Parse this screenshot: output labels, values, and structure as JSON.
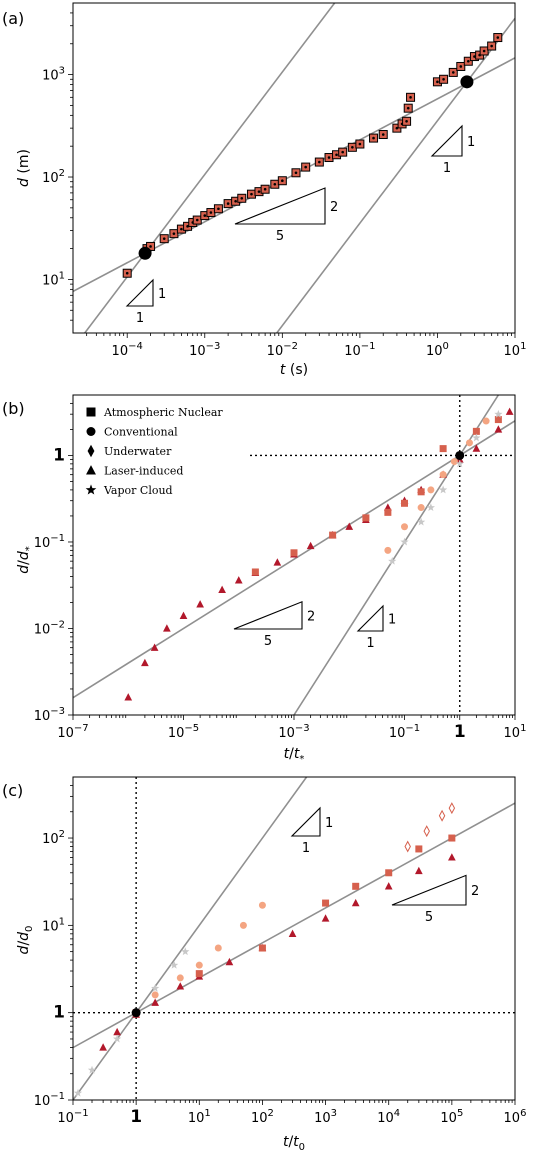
{
  "colors": {
    "dark_red": "#b2182b",
    "red": "#d6604d",
    "salmon": "#f4a582",
    "peach": "#fddbc7",
    "grey": "#c8c8c8",
    "fit_line": "#909090",
    "marker_point": "#000000"
  },
  "chart_data": [
    {
      "type": "scatter",
      "panel_label": "(a)",
      "xlabel": "t (s)",
      "ylabel": "d (m)",
      "xscale": "log",
      "yscale": "log",
      "xlim": [
        2e-05,
        10
      ],
      "ylim": [
        3,
        5000
      ],
      "x_tick_labels": [
        "10^-4",
        "10^-3",
        "10^-2",
        "10^-1",
        "10^0",
        "10^1"
      ],
      "y_tick_labels": [
        "10^1",
        "10^2",
        "10^3"
      ],
      "grid": false,
      "series": [
        {
          "marker": "square",
          "points": [
            [
              0.0001,
              11.5
            ],
            [
              0.00018,
              20
            ],
            [
              0.0002,
              21
            ],
            [
              0.0003,
              25
            ],
            [
              0.0004,
              28
            ],
            [
              0.0005,
              31
            ],
            [
              0.0006,
              33
            ],
            [
              0.0007,
              36
            ],
            [
              0.0008,
              38
            ],
            [
              0.001,
              42
            ],
            [
              0.0012,
              45
            ],
            [
              0.0015,
              49
            ],
            [
              0.002,
              55
            ],
            [
              0.0025,
              58
            ],
            [
              0.003,
              62
            ],
            [
              0.004,
              68
            ],
            [
              0.005,
              72
            ],
            [
              0.006,
              76
            ],
            [
              0.008,
              85
            ],
            [
              0.01,
              92
            ],
            [
              0.015,
              110
            ],
            [
              0.02,
              125
            ],
            [
              0.03,
              140
            ],
            [
              0.04,
              155
            ],
            [
              0.05,
              165
            ],
            [
              0.06,
              175
            ],
            [
              0.08,
              195
            ],
            [
              0.1,
              210
            ],
            [
              0.15,
              240
            ],
            [
              0.2,
              260
            ],
            [
              0.3,
              300
            ],
            [
              0.35,
              330
            ],
            [
              0.4,
              350
            ],
            [
              0.42,
              470
            ],
            [
              0.45,
              600
            ],
            [
              1.0,
              850
            ],
            [
              1.2,
              900
            ],
            [
              1.6,
              1050
            ],
            [
              2.0,
              1200
            ],
            [
              2.5,
              1350
            ],
            [
              3.0,
              1500
            ],
            [
              3.5,
              1550
            ],
            [
              4.0,
              1700
            ],
            [
              5.0,
              1900
            ],
            [
              6.0,
              2300
            ]
          ]
        }
      ],
      "special_points": [
        [
          0.00017,
          18
        ],
        [
          2.4,
          850
        ]
      ],
      "fit_lines": [
        {
          "slope": 0.4,
          "through": [
            0.00017,
            18
          ]
        },
        {
          "slope": 1,
          "through": [
            0.00017,
            18
          ]
        },
        {
          "slope": 1,
          "through": [
            2.4,
            850
          ]
        }
      ],
      "slope_triangles": [
        {
          "rise_label": "1",
          "run_label": "1",
          "slope": 1
        },
        {
          "rise_label": "2",
          "run_label": "5",
          "slope": 0.4
        },
        {
          "rise_label": "1",
          "run_label": "1",
          "slope": 1
        }
      ]
    },
    {
      "type": "scatter",
      "panel_label": "(b)",
      "xlabel": "t/t*",
      "ylabel": "d/d*",
      "xscale": "log",
      "yscale": "log",
      "xlim": [
        1e-07,
        10
      ],
      "ylim": [
        0.001,
        5
      ],
      "x_tick_labels": [
        "10^-7",
        "10^-5",
        "10^-3",
        "10^-1",
        "1",
        "10^1"
      ],
      "y_tick_labels": [
        "10^-3",
        "10^-2",
        "10^-1",
        "1"
      ],
      "reference_lines": {
        "x": 1,
        "y": 1
      },
      "grid": false,
      "legend": {
        "placement": "top-left",
        "entries": [
          {
            "label": "Atmospheric Nuclear",
            "marker": "square"
          },
          {
            "label": "Conventional",
            "marker": "circle"
          },
          {
            "label": "Underwater",
            "marker": "diamond"
          },
          {
            "label": "Laser-induced",
            "marker": "triangle"
          },
          {
            "label": "Vapor Cloud",
            "marker": "star"
          }
        ]
      },
      "series": [
        {
          "marker": "triangle",
          "color": "#b2182b",
          "points": [
            [
              1e-06,
              0.0016
            ],
            [
              2e-06,
              0.004
            ],
            [
              3e-06,
              0.006
            ],
            [
              5e-06,
              0.01
            ],
            [
              1e-05,
              0.014
            ],
            [
              2e-05,
              0.019
            ],
            [
              5e-05,
              0.028
            ],
            [
              0.0001,
              0.036
            ],
            [
              0.0002,
              0.044
            ],
            [
              0.0005,
              0.058
            ],
            [
              0.001,
              0.072
            ],
            [
              0.002,
              0.09
            ],
            [
              0.005,
              0.12
            ],
            [
              0.01,
              0.15
            ],
            [
              0.02,
              0.18
            ],
            [
              0.05,
              0.25
            ],
            [
              0.1,
              0.3
            ],
            [
              0.2,
              0.4
            ],
            [
              0.5,
              0.6
            ],
            [
              1.0,
              0.9
            ],
            [
              2.0,
              1.2
            ],
            [
              5.0,
              2.0
            ],
            [
              8.0,
              3.2
            ]
          ]
        },
        {
          "marker": "square",
          "color": "#d6604d",
          "points": [
            [
              0.0002,
              0.045
            ],
            [
              0.001,
              0.075
            ],
            [
              0.005,
              0.12
            ],
            [
              0.02,
              0.19
            ],
            [
              0.05,
              0.22
            ],
            [
              0.1,
              0.28
            ],
            [
              0.2,
              0.38
            ],
            [
              0.5,
              1.2
            ],
            [
              2.0,
              1.9
            ],
            [
              5.0,
              2.6
            ]
          ]
        },
        {
          "marker": "circle",
          "color": "#f4a582",
          "points": [
            [
              0.05,
              0.08
            ],
            [
              0.1,
              0.15
            ],
            [
              0.2,
              0.25
            ],
            [
              0.3,
              0.4
            ],
            [
              0.5,
              0.6
            ],
            [
              0.8,
              0.85
            ],
            [
              1.5,
              1.4
            ],
            [
              3.0,
              2.5
            ]
          ]
        },
        {
          "marker": "star",
          "color": "#c8c8c8",
          "points": [
            [
              0.06,
              0.06
            ],
            [
              0.1,
              0.1
            ],
            [
              0.2,
              0.17
            ],
            [
              0.3,
              0.25
            ],
            [
              0.5,
              0.4
            ],
            [
              1.0,
              0.8
            ],
            [
              2.0,
              1.6
            ],
            [
              5.0,
              3.0
            ]
          ]
        }
      ],
      "special_points": [
        [
          1,
          1
        ]
      ],
      "fit_lines": [
        {
          "slope": 0.4,
          "through": [
            1,
            1
          ]
        },
        {
          "slope": 1,
          "through": [
            1,
            1
          ]
        }
      ],
      "slope_triangles": [
        {
          "rise_label": "2",
          "run_label": "5",
          "slope": 0.4
        },
        {
          "rise_label": "1",
          "run_label": "1",
          "slope": 1
        }
      ]
    },
    {
      "type": "scatter",
      "panel_label": "(c)",
      "xlabel": "t/t0",
      "ylabel": "d/d0",
      "xscale": "log",
      "yscale": "log",
      "xlim": [
        0.1,
        1000000
      ],
      "ylim": [
        0.1,
        500
      ],
      "x_tick_labels": [
        "10^-1",
        "1",
        "10^1",
        "10^2",
        "10^3",
        "10^4",
        "10^5",
        "10^6"
      ],
      "y_tick_labels": [
        "10^-1",
        "1",
        "10^1",
        "10^2"
      ],
      "reference_lines": {
        "x": 1,
        "y": 1
      },
      "grid": false,
      "series": [
        {
          "marker": "triangle",
          "color": "#b2182b",
          "points": [
            [
              0.3,
              0.4
            ],
            [
              0.5,
              0.6
            ],
            [
              1.0,
              0.95
            ],
            [
              2.0,
              1.3
            ],
            [
              5.0,
              2.0
            ],
            [
              10,
              2.6
            ],
            [
              30,
              3.8
            ],
            [
              100,
              5.5
            ],
            [
              300,
              8
            ],
            [
              1000,
              12
            ],
            [
              3000,
              18
            ],
            [
              10000,
              28
            ],
            [
              30000,
              42
            ],
            [
              100000,
              60
            ]
          ]
        },
        {
          "marker": "square",
          "color": "#d6604d",
          "points": [
            [
              1.0,
              1.0
            ],
            [
              10,
              2.8
            ],
            [
              100,
              5.5
            ],
            [
              1000,
              18
            ],
            [
              3000,
              28
            ],
            [
              10000,
              40
            ],
            [
              30000,
              75
            ],
            [
              100000,
              100
            ]
          ]
        },
        {
          "marker": "diamond",
          "color": "#d6604d",
          "points": [
            [
              20000,
              80
            ],
            [
              40000,
              120
            ],
            [
              70000,
              180
            ],
            [
              100000,
              220
            ]
          ]
        },
        {
          "marker": "circle",
          "color": "#f4a582",
          "points": [
            [
              1.0,
              1.0
            ],
            [
              2.0,
              1.6
            ],
            [
              5.0,
              2.5
            ],
            [
              10,
              3.5
            ],
            [
              20,
              5.5
            ],
            [
              50,
              10
            ],
            [
              100,
              17
            ]
          ]
        },
        {
          "marker": "star",
          "color": "#c8c8c8",
          "points": [
            [
              0.12,
              0.12
            ],
            [
              0.2,
              0.22
            ],
            [
              0.5,
              0.5
            ],
            [
              1.0,
              1.0
            ],
            [
              2.0,
              1.9
            ],
            [
              4.0,
              3.5
            ],
            [
              6.0,
              5.0
            ]
          ]
        }
      ],
      "special_points": [
        [
          1,
          1
        ]
      ],
      "fit_lines": [
        {
          "slope": 0.4,
          "through": [
            1,
            1
          ]
        },
        {
          "slope": 1,
          "through": [
            1,
            1
          ]
        }
      ],
      "slope_triangles": [
        {
          "rise_label": "1",
          "run_label": "1",
          "slope": 1
        },
        {
          "rise_label": "2",
          "run_label": "5",
          "slope": 0.4
        }
      ]
    }
  ]
}
